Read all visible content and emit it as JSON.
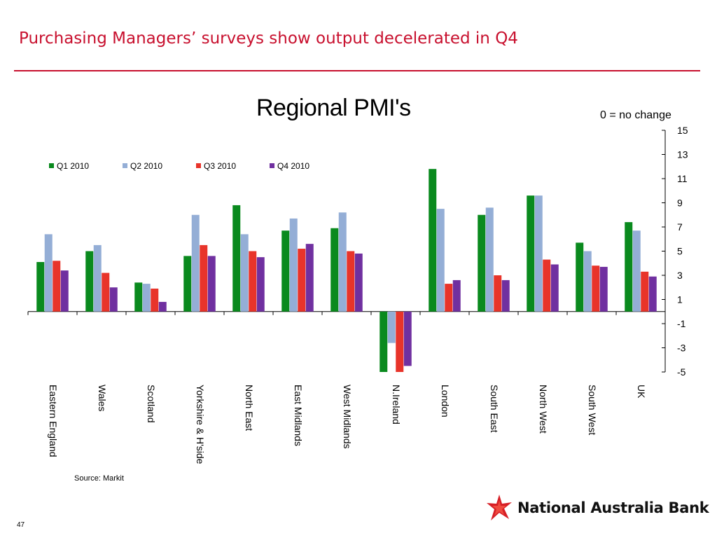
{
  "slide": {
    "title": "Purchasing Managers’ surveys show output decelerated in Q4",
    "source": "Source: Markit",
    "page_number": "47",
    "logo_text": "National Australia Bank",
    "accent_color": "#c8102e"
  },
  "chart_data": {
    "type": "bar",
    "title": "Regional PMI's",
    "y_axis_note": "0 = no change",
    "xlabel": "",
    "ylabel": "",
    "ylim": [
      -5,
      15
    ],
    "yticks": [
      15,
      13,
      11,
      9,
      7,
      5,
      3,
      1,
      -1,
      -3,
      -5
    ],
    "y_axis_side": "right",
    "legend_position": "top-left",
    "grid": false,
    "categories": [
      "Eastern England",
      "Wales",
      "Scotland",
      "Yorkshire & H'side",
      "North East",
      "East Midlands",
      "West Midlands",
      "N.Ireland",
      "London",
      "South East",
      "North West",
      "South West",
      "UK"
    ],
    "series": [
      {
        "name": "Q1 2010",
        "color": "#0a8a1e",
        "values": [
          4.1,
          5.0,
          2.4,
          4.6,
          8.8,
          6.7,
          6.9,
          -5.0,
          11.8,
          8.0,
          9.6,
          5.7,
          7.4
        ]
      },
      {
        "name": "Q2 2010",
        "color": "#94aed6",
        "values": [
          6.4,
          5.5,
          2.3,
          8.0,
          6.4,
          7.7,
          8.2,
          -2.6,
          8.5,
          8.6,
          9.6,
          5.0,
          6.7
        ]
      },
      {
        "name": "Q3 2010",
        "color": "#e8342a",
        "values": [
          4.2,
          3.2,
          1.9,
          5.5,
          5.0,
          5.2,
          5.0,
          -5.0,
          2.3,
          3.0,
          4.3,
          3.8,
          3.3
        ]
      },
      {
        "name": "Q4 2010",
        "color": "#7030a0",
        "values": [
          3.4,
          2.0,
          0.8,
          4.6,
          4.5,
          5.6,
          4.8,
          -4.5,
          2.6,
          2.6,
          3.9,
          3.7,
          2.9
        ]
      }
    ]
  }
}
